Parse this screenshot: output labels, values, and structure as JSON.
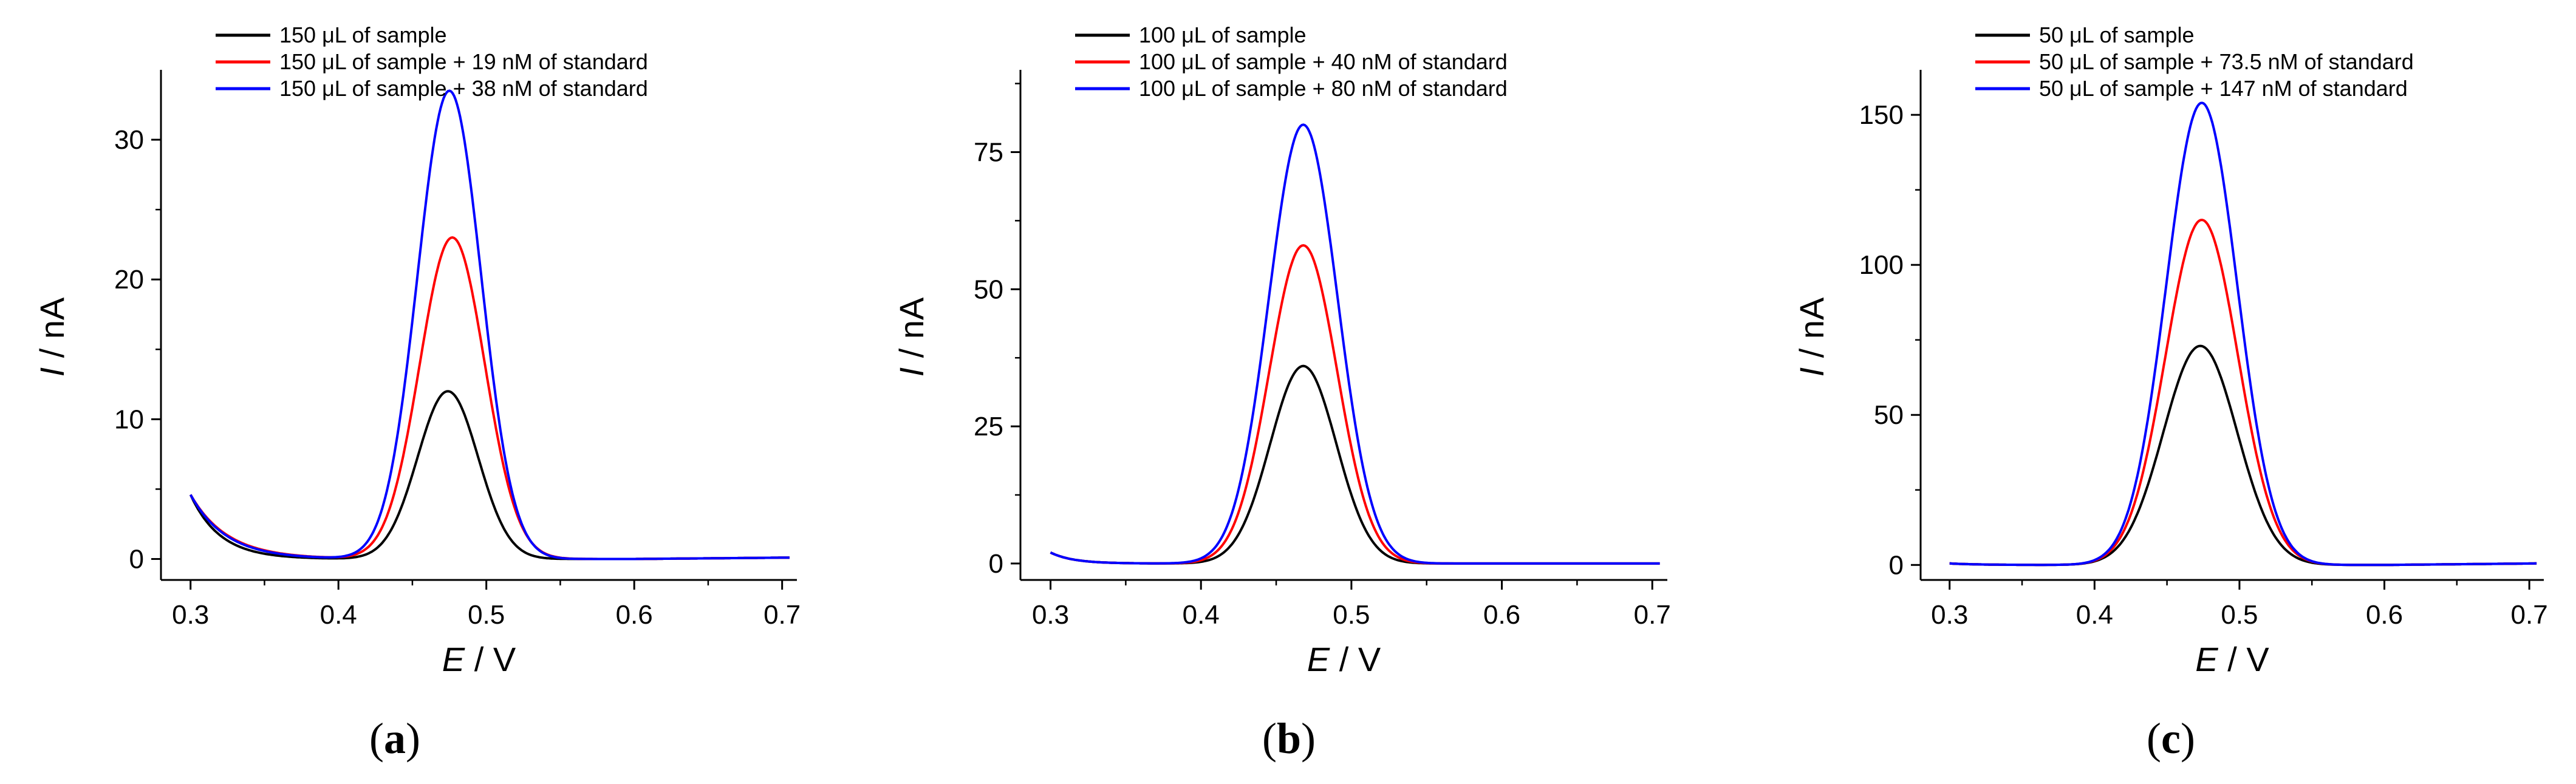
{
  "chart_data": [
    {
      "type": "line",
      "panel_label": "(a)",
      "panel_letter": "a",
      "xlabel_var": "E",
      "xlabel_unit": "V",
      "ylabel_var": "I",
      "ylabel_unit": "nA",
      "xlim": [
        0.28,
        0.71
      ],
      "ylim": [
        -1.5,
        35
      ],
      "xticks": [
        "0.3",
        "0.4",
        "0.5",
        "0.6",
        "0.7"
      ],
      "yticks": [
        "0",
        "10",
        "20",
        "30"
      ],
      "grid": false,
      "legend_position": "top-left",
      "series": [
        {
          "name": "150 μL of sample",
          "color": "#000000",
          "peak_x": 0.474,
          "peak_y": 12.0,
          "sigma": 0.0205,
          "edge_y": 4.6,
          "edge_decay": 0.02,
          "end_y": 0.1
        },
        {
          "name": "150 μL of sample + 19 nM of standard",
          "color": "#ff0000",
          "peak_x": 0.477,
          "peak_y": 23.0,
          "sigma": 0.022,
          "edge_y": 4.6,
          "edge_decay": 0.025,
          "end_y": 0.1
        },
        {
          "name": "150 μL of sample + 38 nM of standard",
          "color": "#0000ff",
          "peak_x": 0.475,
          "peak_y": 33.5,
          "sigma": 0.0215,
          "edge_y": 4.6,
          "edge_decay": 0.024,
          "end_y": 0.1
        }
      ]
    },
    {
      "type": "line",
      "panel_label": "(b)",
      "panel_letter": "b",
      "xlabel_var": "E",
      "xlabel_unit": "V",
      "ylabel_var": "I",
      "ylabel_unit": "nA",
      "xlim": [
        0.28,
        0.71
      ],
      "ylim": [
        -3,
        90
      ],
      "xticks": [
        "0.3",
        "0.4",
        "0.5",
        "0.6",
        "0.7"
      ],
      "yticks": [
        "0",
        "25",
        "50",
        "75"
      ],
      "grid": false,
      "legend_position": "top-left",
      "series": [
        {
          "name": "100 μL of sample",
          "color": "#000000",
          "peak_x": 0.468,
          "peak_y": 36.0,
          "sigma": 0.022,
          "edge_y": 2.0,
          "edge_decay": 0.015,
          "end_y": 0
        },
        {
          "name": "100 μL of sample + 40 nM of standard",
          "color": "#ff0000",
          "peak_x": 0.468,
          "peak_y": 58.0,
          "sigma": 0.0225,
          "edge_y": 2.0,
          "edge_decay": 0.015,
          "end_y": 0
        },
        {
          "name": "100 μL of sample + 80 nM of standard",
          "color": "#0000ff",
          "peak_x": 0.468,
          "peak_y": 80.0,
          "sigma": 0.0228,
          "edge_y": 2.0,
          "edge_decay": 0.015,
          "end_y": 0
        }
      ]
    },
    {
      "type": "line",
      "panel_label": "(c)",
      "panel_letter": "c",
      "xlabel_var": "E",
      "xlabel_unit": "V",
      "ylabel_var": "I",
      "ylabel_unit": "nA",
      "xlim": [
        0.28,
        0.71
      ],
      "ylim": [
        -5,
        165
      ],
      "xticks": [
        "0.3",
        "0.4",
        "0.5",
        "0.6",
        "0.7"
      ],
      "yticks": [
        "0",
        "50",
        "100",
        "150"
      ],
      "grid": false,
      "legend_position": "top-left",
      "series": [
        {
          "name": "50 μL of sample",
          "color": "#000000",
          "peak_x": 0.473,
          "peak_y": 73.0,
          "sigma": 0.0255,
          "edge_y": 0.5,
          "edge_decay": 0.02,
          "end_y": 0.5
        },
        {
          "name": "50 μL of sample + 73.5 nM of standard",
          "color": "#ff0000",
          "peak_x": 0.474,
          "peak_y": 115.0,
          "sigma": 0.025,
          "edge_y": 0.5,
          "edge_decay": 0.02,
          "end_y": 0.5
        },
        {
          "name": "50 μL of sample + 147 nM of standard",
          "color": "#0000ff",
          "peak_x": 0.474,
          "peak_y": 154.0,
          "sigma": 0.0245,
          "edge_y": 0.5,
          "edge_decay": 0.02,
          "end_y": 0.5
        }
      ]
    }
  ]
}
